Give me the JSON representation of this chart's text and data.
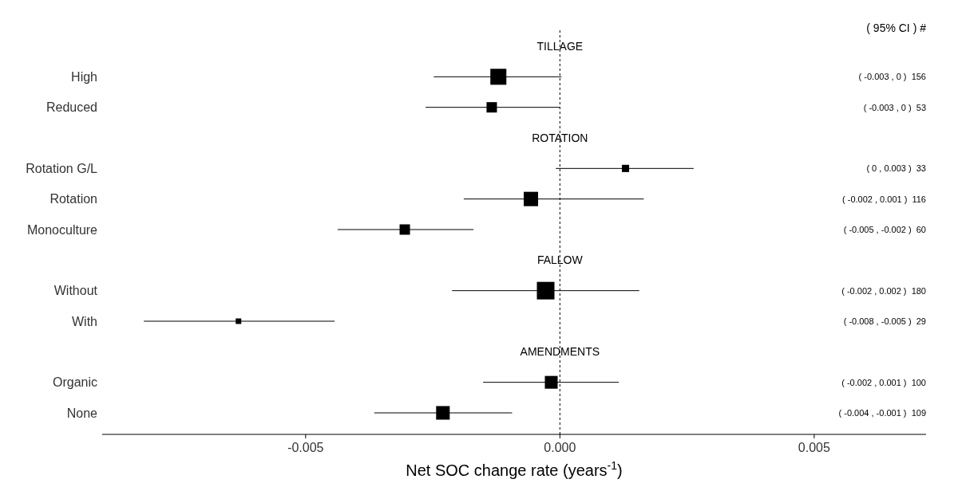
{
  "chart_data": {
    "type": "bubble",
    "orientation": "horizontal",
    "marker": "square",
    "grid": false,
    "xlabel": "Net SOC change rate (years$^{-1}$)",
    "categories": [
      null,
      "High",
      "Reduced",
      null,
      "Rotation G/L",
      "Rotation",
      "Monoculture",
      null,
      "Without",
      "With",
      null,
      "Organic",
      "None"
    ],
    "values": [
      null,
      -0.00121,
      -0.00134,
      null,
      0.00129,
      -0.00057,
      -0.00305,
      null,
      -0.00028,
      -0.00632,
      null,
      -0.00017,
      -0.0023
    ],
    "errors": [
      null,
      [
        -0.00248,
        3e-05
      ],
      [
        -0.00264,
        0
      ],
      null,
      [
        -8e-05,
        0.00263
      ],
      [
        -0.00189,
        0.00165
      ],
      [
        -0.00437,
        -0.0017
      ],
      null,
      [
        -0.00212,
        0.00156
      ],
      [
        -0.00818,
        -0.00443
      ],
      null,
      [
        -0.00151,
        0.00116
      ],
      [
        -0.00365,
        -0.00094
      ]
    ],
    "sizes": [
      null,
      0.83,
      0.35,
      null,
      0.17,
      0.67,
      0.35,
      null,
      1,
      0.1,
      null,
      0.53,
      0.6
    ],
    "color": "#000000",
    "xlim": [
      -0.009,
      0.0072
    ],
    "xticks": [
      {
        "value": -0.005,
        "label": "-0.005"
      },
      {
        "value": 0,
        "label": "0.000"
      },
      {
        "value": 0.005,
        "label": "0.005"
      }
    ],
    "ref_lines": [
      {
        "axis": "x",
        "value": 0,
        "line_style": "dashed",
        "color": "#000000"
      }
    ],
    "annotations": [
      "( 95% CI )  #",
      "TILLAGE",
      "ROTATION",
      "FALLOW",
      "AMENDMENTS",
      "( -0.003 , 0 )  156",
      "( -0.003 , 0 )  53",
      "( 0 , 0.003 )  33",
      "( -0.002 , 0.001 )  116",
      "( -0.005 , -0.002 )  60",
      "( -0.002 , 0.002 )  180",
      "( -0.008 , -0.005 )  29",
      "( -0.002 , 0.001 )  100",
      "( -0.004 , -0.001 )  109"
    ]
  }
}
